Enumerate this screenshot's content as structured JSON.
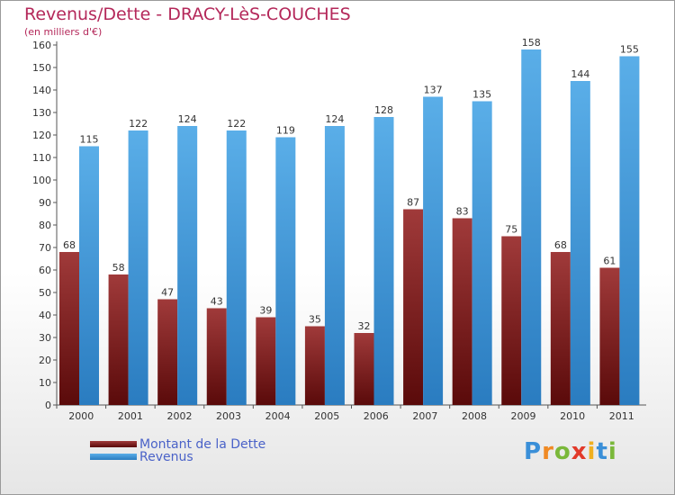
{
  "title": "Revenus/Dette - DRACY-LèS-COUCHES",
  "subtitle": "(en milliers d'€)",
  "brand": {
    "text": "Proxiti",
    "letter_colors": [
      "#3a8fd8",
      "#f08a24",
      "#7ab83a",
      "#e23a2a",
      "#f0b020",
      "#3a8fd8",
      "#7ab83a"
    ]
  },
  "colors": {
    "title": "#b4285a",
    "debt_light": "#a03a3a",
    "debt_dark": "#5a0a0a",
    "revenue_light": "#5aaee8",
    "revenue_dark": "#2a7cc0",
    "legend_text": "#4a62c8"
  },
  "chart_data": {
    "type": "bar",
    "categories": [
      "2000",
      "2001",
      "2002",
      "2003",
      "2004",
      "2005",
      "2006",
      "2007",
      "2008",
      "2009",
      "2010",
      "2011"
    ],
    "series": [
      {
        "name": "Montant de la Dette",
        "values": [
          68,
          58,
          47,
          43,
          39,
          35,
          32,
          87,
          83,
          75,
          68,
          61
        ]
      },
      {
        "name": "Revenus",
        "values": [
          115,
          122,
          124,
          122,
          119,
          124,
          128,
          137,
          135,
          158,
          144,
          155
        ]
      }
    ],
    "yticks": [
      0,
      10,
      20,
      30,
      40,
      50,
      60,
      70,
      80,
      90,
      100,
      110,
      120,
      130,
      140,
      150,
      160
    ],
    "ylim": [
      0,
      160
    ],
    "grid": false,
    "legend_position": "bottom-left"
  }
}
